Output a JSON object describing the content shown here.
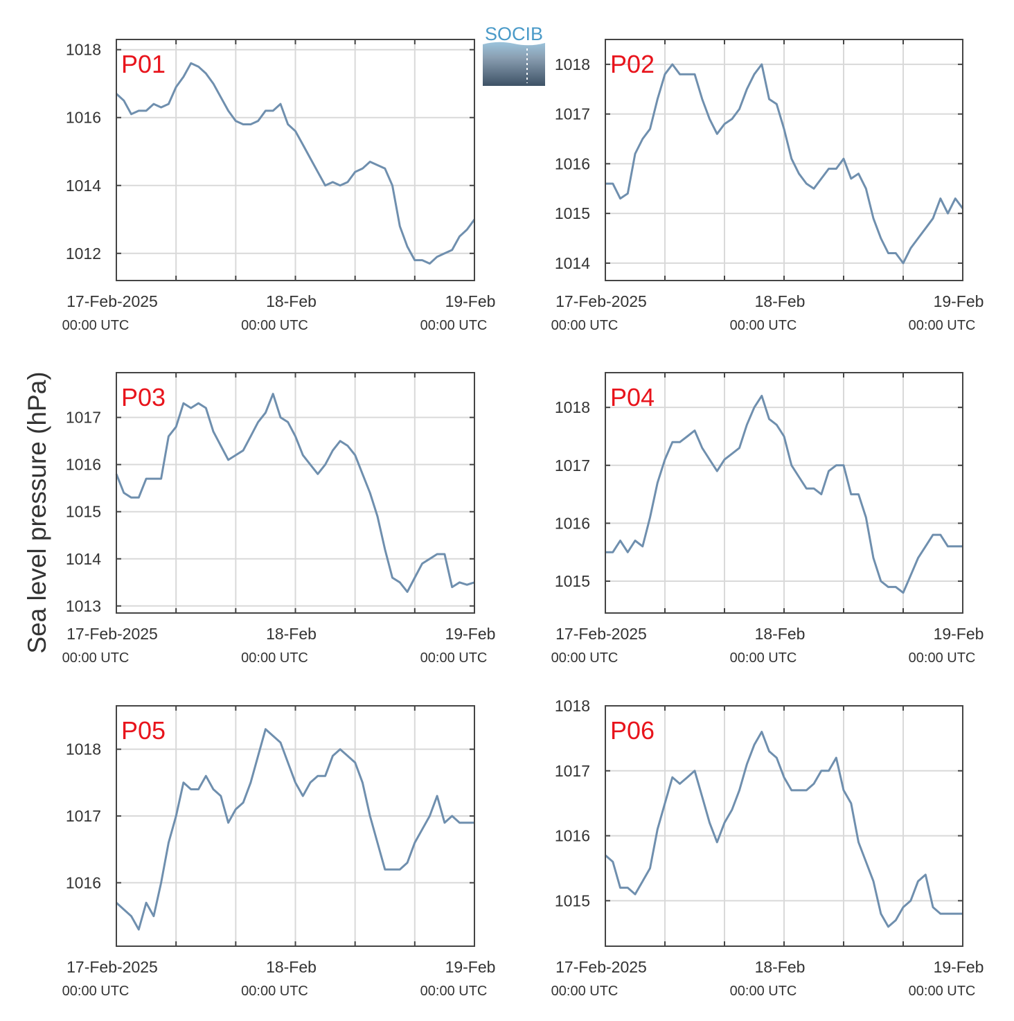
{
  "y_axis_label": "Sea level pressure (hPa)",
  "logo": {
    "text": "SOCIB"
  },
  "colors": {
    "line": "#6f8fae",
    "panel_label": "#e8141c",
    "grid": "#d9d9d9",
    "axes": "#444444"
  },
  "chart_data": [
    {
      "type": "line",
      "name": "P01",
      "x_unit": "hours since 17-Feb-2025 00:00 UTC",
      "x_ticks": [
        {
          "label": "17-Feb-2025",
          "sub": "00:00 UTC"
        },
        {
          "label": "18-Feb",
          "sub": "00:00 UTC"
        },
        {
          "label": "19-Feb",
          "sub": "00:00 UTC"
        }
      ],
      "xlim": [
        0,
        48
      ],
      "ylim": [
        1011.2,
        1018.3
      ],
      "yticks": [
        1012,
        1014,
        1016,
        1018
      ],
      "x": [
        0,
        1,
        2,
        3,
        4,
        5,
        6,
        7,
        8,
        9,
        10,
        11,
        12,
        13,
        14,
        15,
        16,
        17,
        18,
        19,
        20,
        21,
        22,
        23,
        24,
        25,
        26,
        27,
        28,
        29,
        30,
        31,
        32,
        33,
        34,
        35,
        36,
        37,
        38,
        39,
        40,
        41,
        42,
        43,
        44,
        45,
        46,
        47,
        48
      ],
      "y": [
        1016.7,
        1016.5,
        1016.1,
        1016.2,
        1016.2,
        1016.4,
        1016.3,
        1016.4,
        1016.9,
        1017.2,
        1017.6,
        1017.5,
        1017.3,
        1017.0,
        1016.6,
        1016.2,
        1015.9,
        1015.8,
        1015.8,
        1015.9,
        1016.2,
        1016.2,
        1016.4,
        1015.8,
        1015.6,
        1015.2,
        1014.8,
        1014.4,
        1014.0,
        1014.1,
        1014.0,
        1014.1,
        1014.4,
        1014.5,
        1014.7,
        1014.6,
        1014.5,
        1014.0,
        1012.8,
        1012.2,
        1011.8,
        1011.8,
        1011.7,
        1011.9,
        1012.0,
        1012.1,
        1012.5,
        1012.7,
        1013.0
      ]
    },
    {
      "type": "line",
      "name": "P02",
      "x_unit": "hours since 17-Feb-2025 00:00 UTC",
      "x_ticks": [
        {
          "label": "17-Feb-2025",
          "sub": "00:00 UTC"
        },
        {
          "label": "18-Feb",
          "sub": "00:00 UTC"
        },
        {
          "label": "19-Feb",
          "sub": "00:00 UTC"
        }
      ],
      "xlim": [
        0,
        48
      ],
      "ylim": [
        1013.65,
        1018.5
      ],
      "yticks": [
        1014,
        1015,
        1016,
        1017,
        1018
      ],
      "x": [
        0,
        1,
        2,
        3,
        4,
        5,
        6,
        7,
        8,
        9,
        10,
        11,
        12,
        13,
        14,
        15,
        16,
        17,
        18,
        19,
        20,
        21,
        22,
        23,
        24,
        25,
        26,
        27,
        28,
        29,
        30,
        31,
        32,
        33,
        34,
        35,
        36,
        37,
        38,
        39,
        40,
        41,
        42,
        43,
        44,
        45,
        46,
        47,
        48
      ],
      "y": [
        1015.6,
        1015.6,
        1015.3,
        1015.4,
        1016.2,
        1016.5,
        1016.7,
        1017.3,
        1017.8,
        1018.0,
        1017.8,
        1017.8,
        1017.8,
        1017.3,
        1016.9,
        1016.6,
        1016.8,
        1016.9,
        1017.1,
        1017.5,
        1017.8,
        1018.0,
        1017.3,
        1017.2,
        1016.7,
        1016.1,
        1015.8,
        1015.6,
        1015.5,
        1015.7,
        1015.9,
        1015.9,
        1016.1,
        1015.7,
        1015.8,
        1015.5,
        1014.9,
        1014.5,
        1014.2,
        1014.2,
        1014.0,
        1014.3,
        1014.5,
        1014.7,
        1014.9,
        1015.3,
        1015.0,
        1015.3,
        1015.1
      ]
    },
    {
      "type": "line",
      "name": "P03",
      "x_unit": "hours since 17-Feb-2025 00:00 UTC",
      "x_ticks": [
        {
          "label": "17-Feb-2025",
          "sub": "00:00 UTC"
        },
        {
          "label": "18-Feb",
          "sub": "00:00 UTC"
        },
        {
          "label": "19-Feb",
          "sub": "00:00 UTC"
        }
      ],
      "xlim": [
        0,
        48
      ],
      "ylim": [
        1012.85,
        1017.95
      ],
      "yticks": [
        1013,
        1014,
        1015,
        1016,
        1017
      ],
      "x": [
        0,
        1,
        2,
        3,
        4,
        5,
        6,
        7,
        8,
        9,
        10,
        11,
        12,
        13,
        14,
        15,
        16,
        17,
        18,
        19,
        20,
        21,
        22,
        23,
        24,
        25,
        26,
        27,
        28,
        29,
        30,
        31,
        32,
        33,
        34,
        35,
        36,
        37,
        38,
        39,
        40,
        41,
        42,
        43,
        44,
        45,
        46,
        47,
        48
      ],
      "y": [
        1015.8,
        1015.4,
        1015.3,
        1015.3,
        1015.7,
        1015.7,
        1015.7,
        1016.6,
        1016.8,
        1017.3,
        1017.2,
        1017.3,
        1017.2,
        1016.7,
        1016.4,
        1016.1,
        1016.2,
        1016.3,
        1016.6,
        1016.9,
        1017.1,
        1017.5,
        1017.0,
        1016.9,
        1016.6,
        1016.2,
        1016.0,
        1015.8,
        1016.0,
        1016.3,
        1016.5,
        1016.4,
        1016.2,
        1015.8,
        1015.4,
        1014.9,
        1014.2,
        1013.6,
        1013.5,
        1013.3,
        1013.6,
        1013.9,
        1014.0,
        1014.1,
        1014.1,
        1013.4,
        1013.5,
        1013.45,
        1013.5
      ]
    },
    {
      "type": "line",
      "name": "P04",
      "x_unit": "hours since 17-Feb-2025 00:00 UTC",
      "x_ticks": [
        {
          "label": "17-Feb-2025",
          "sub": "00:00 UTC"
        },
        {
          "label": "18-Feb",
          "sub": "00:00 UTC"
        },
        {
          "label": "19-Feb",
          "sub": "00:00 UTC"
        }
      ],
      "xlim": [
        0,
        48
      ],
      "ylim": [
        1014.45,
        1018.6
      ],
      "yticks": [
        1015,
        1016,
        1017,
        1018
      ],
      "x": [
        0,
        1,
        2,
        3,
        4,
        5,
        6,
        7,
        8,
        9,
        10,
        11,
        12,
        13,
        14,
        15,
        16,
        17,
        18,
        19,
        20,
        21,
        22,
        23,
        24,
        25,
        26,
        27,
        28,
        29,
        30,
        31,
        32,
        33,
        34,
        35,
        36,
        37,
        38,
        39,
        40,
        41,
        42,
        43,
        44,
        45,
        46,
        47,
        48
      ],
      "y": [
        1015.5,
        1015.5,
        1015.7,
        1015.5,
        1015.7,
        1015.6,
        1016.1,
        1016.7,
        1017.1,
        1017.4,
        1017.4,
        1017.5,
        1017.6,
        1017.3,
        1017.1,
        1016.9,
        1017.1,
        1017.2,
        1017.3,
        1017.7,
        1018.0,
        1018.2,
        1017.8,
        1017.7,
        1017.5,
        1017.0,
        1016.8,
        1016.6,
        1016.6,
        1016.5,
        1016.9,
        1017.0,
        1017.0,
        1016.5,
        1016.5,
        1016.1,
        1015.4,
        1015.0,
        1014.9,
        1014.9,
        1014.8,
        1015.1,
        1015.4,
        1015.6,
        1015.8,
        1015.8,
        1015.6,
        1015.6,
        1015.6
      ]
    },
    {
      "type": "line",
      "name": "P05",
      "x_unit": "hours since 17-Feb-2025 00:00 UTC",
      "x_ticks": [
        {
          "label": "17-Feb-2025",
          "sub": "00:00 UTC"
        },
        {
          "label": "18-Feb",
          "sub": "00:00 UTC"
        },
        {
          "label": "19-Feb",
          "sub": "00:00 UTC"
        }
      ],
      "xlim": [
        0,
        48
      ],
      "ylim": [
        1015.05,
        1018.65
      ],
      "yticks": [
        1016,
        1017,
        1018
      ],
      "x": [
        0,
        1,
        2,
        3,
        4,
        5,
        6,
        7,
        8,
        9,
        10,
        11,
        12,
        13,
        14,
        15,
        16,
        17,
        18,
        19,
        20,
        21,
        22,
        23,
        24,
        25,
        26,
        27,
        28,
        29,
        30,
        31,
        32,
        33,
        34,
        35,
        36,
        37,
        38,
        39,
        40,
        41,
        42,
        43,
        44,
        45,
        46,
        47,
        48
      ],
      "y": [
        1015.7,
        1015.6,
        1015.5,
        1015.3,
        1015.7,
        1015.5,
        1016.0,
        1016.6,
        1017.0,
        1017.5,
        1017.4,
        1017.4,
        1017.6,
        1017.4,
        1017.3,
        1016.9,
        1017.1,
        1017.2,
        1017.5,
        1017.9,
        1018.3,
        1018.2,
        1018.1,
        1017.8,
        1017.5,
        1017.3,
        1017.5,
        1017.6,
        1017.6,
        1017.9,
        1018.0,
        1017.9,
        1017.8,
        1017.5,
        1017.0,
        1016.6,
        1016.2,
        1016.2,
        1016.2,
        1016.3,
        1016.6,
        1016.8,
        1017.0,
        1017.3,
        1016.9,
        1017.0,
        1016.9,
        1016.9,
        1016.9
      ]
    },
    {
      "type": "line",
      "name": "P06",
      "x_unit": "hours since 17-Feb-2025 00:00 UTC",
      "x_ticks": [
        {
          "label": "17-Feb-2025",
          "sub": "00:00 UTC"
        },
        {
          "label": "18-Feb",
          "sub": "00:00 UTC"
        },
        {
          "label": "19-Feb",
          "sub": "00:00 UTC"
        }
      ],
      "xlim": [
        0,
        48
      ],
      "ylim": [
        1014.3,
        1018.0
      ],
      "yticks": [
        1015,
        1016,
        1017,
        1018
      ],
      "x": [
        0,
        1,
        2,
        3,
        4,
        5,
        6,
        7,
        8,
        9,
        10,
        11,
        12,
        13,
        14,
        15,
        16,
        17,
        18,
        19,
        20,
        21,
        22,
        23,
        24,
        25,
        26,
        27,
        28,
        29,
        30,
        31,
        32,
        33,
        34,
        35,
        36,
        37,
        38,
        39,
        40,
        41,
        42,
        43,
        44,
        45,
        46,
        47,
        48
      ],
      "y": [
        1015.7,
        1015.6,
        1015.2,
        1015.2,
        1015.1,
        1015.3,
        1015.5,
        1016.1,
        1016.5,
        1016.9,
        1016.8,
        1016.9,
        1017.0,
        1016.6,
        1016.2,
        1015.9,
        1016.2,
        1016.4,
        1016.7,
        1017.1,
        1017.4,
        1017.6,
        1017.3,
        1017.2,
        1016.9,
        1016.7,
        1016.7,
        1016.7,
        1016.8,
        1017.0,
        1017.0,
        1017.2,
        1016.7,
        1016.5,
        1015.9,
        1015.6,
        1015.3,
        1014.8,
        1014.6,
        1014.7,
        1014.9,
        1015.0,
        1015.3,
        1015.4,
        1014.9,
        1014.8,
        1014.8,
        1014.8,
        1014.8
      ]
    }
  ]
}
